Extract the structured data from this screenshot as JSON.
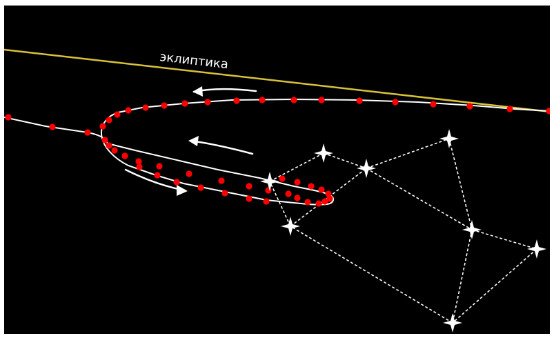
{
  "ecliptic": {
    "label": "эклиптика",
    "color": "#d8c23a"
  },
  "colors": {
    "background": "#000000",
    "path": "#ffffff",
    "position_dot": "#ff0000",
    "arrow": "#ffffff",
    "constellation_line": "#ffffff",
    "star": "#ffffff"
  },
  "path_loop": {
    "description_shape": "retrograde-loop",
    "arrows": [
      "westward",
      "westward",
      "eastward"
    ]
  }
}
